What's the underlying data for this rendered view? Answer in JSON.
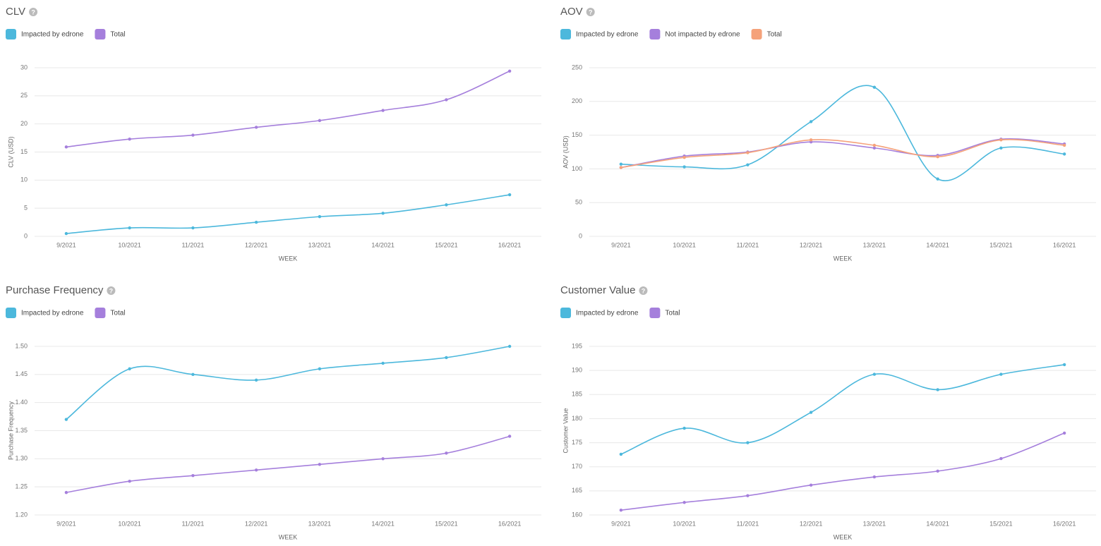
{
  "chart_data": [
    {
      "type": "line",
      "title": "CLV",
      "ylabel": "CLV (USD)",
      "xlabel": "WEEK",
      "categories": [
        "9/2021",
        "10/2021",
        "11/2021",
        "12/2021",
        "13/2021",
        "14/2021",
        "15/2021",
        "16/2021"
      ],
      "series": [
        {
          "name": "Impacted by edrone",
          "color": "#4cb8dc",
          "values": [
            0.5,
            1.5,
            1.5,
            2.5,
            3.5,
            4.1,
            5.6,
            7.4
          ]
        },
        {
          "name": "Total",
          "color": "#a57fdc",
          "values": [
            15.9,
            17.3,
            18,
            19.4,
            20.6,
            22.4,
            24.3,
            29.4
          ]
        }
      ],
      "ylim": [
        0,
        30
      ],
      "yticks": [
        0,
        5,
        10,
        15,
        20,
        25,
        30
      ],
      "grid": true
    },
    {
      "type": "line",
      "title": "AOV",
      "ylabel": "AOV (USD)",
      "xlabel": "WEEK",
      "categories": [
        "9/2021",
        "10/2021",
        "11/2021",
        "12/2021",
        "13/2021",
        "14/2021",
        "15/2021",
        "16/2021"
      ],
      "series": [
        {
          "name": "Impacted by edrone",
          "color": "#4cb8dc",
          "values": [
            107,
            103,
            106,
            170,
            221,
            85,
            131,
            122
          ]
        },
        {
          "name": "Not impacted by edrone",
          "color": "#a57fdc",
          "values": [
            102,
            119,
            125,
            140,
            131,
            120,
            144,
            137
          ]
        },
        {
          "name": "Total",
          "color": "#f5a27a",
          "values": [
            102,
            117,
            124,
            143,
            135,
            118,
            143,
            135
          ]
        }
      ],
      "ylim": [
        0,
        250
      ],
      "yticks": [
        0,
        50,
        100,
        150,
        200,
        250
      ],
      "grid": true
    },
    {
      "type": "line",
      "title": "Purchase Frequency",
      "ylabel": "Purchase Frequency",
      "xlabel": "WEEK",
      "categories": [
        "9/2021",
        "10/2021",
        "11/2021",
        "12/2021",
        "13/2021",
        "14/2021",
        "15/2021",
        "16/2021"
      ],
      "series": [
        {
          "name": "Impacted by edrone",
          "color": "#4cb8dc",
          "values": [
            1.37,
            1.46,
            1.45,
            1.44,
            1.46,
            1.47,
            1.48,
            1.5
          ]
        },
        {
          "name": "Total",
          "color": "#a57fdc",
          "values": [
            1.24,
            1.26,
            1.27,
            1.28,
            1.29,
            1.3,
            1.31,
            1.34
          ]
        }
      ],
      "ylim": [
        1.2,
        1.5
      ],
      "yticks": [
        {
          "value": 1.2,
          "label": "1.20"
        },
        1.25,
        {
          "value": 1.3,
          "label": "1.30"
        },
        1.35,
        {
          "value": 1.4,
          "label": "1.40"
        },
        1.45,
        {
          "value": 1.5,
          "label": "1.50"
        }
      ],
      "grid": true
    },
    {
      "type": "line",
      "title": "Customer Value",
      "ylabel": "Customer Value",
      "xlabel": "WEEK",
      "categories": [
        "9/2021",
        "10/2021",
        "11/2021",
        "12/2021",
        "13/2021",
        "14/2021",
        "15/2021",
        "16/2021"
      ],
      "series": [
        {
          "name": "Impacted by edrone",
          "color": "#4cb8dc",
          "values": [
            172.6,
            178,
            175,
            181.3,
            189.2,
            186,
            189.2,
            191.2
          ]
        },
        {
          "name": "Total",
          "color": "#a57fdc",
          "values": [
            161,
            162.6,
            164,
            166.2,
            167.9,
            169.1,
            171.7,
            177
          ]
        }
      ],
      "ylim": [
        160,
        195
      ],
      "yticks": [
        160,
        165,
        170,
        175,
        180,
        185,
        190,
        195
      ],
      "grid": true
    }
  ]
}
